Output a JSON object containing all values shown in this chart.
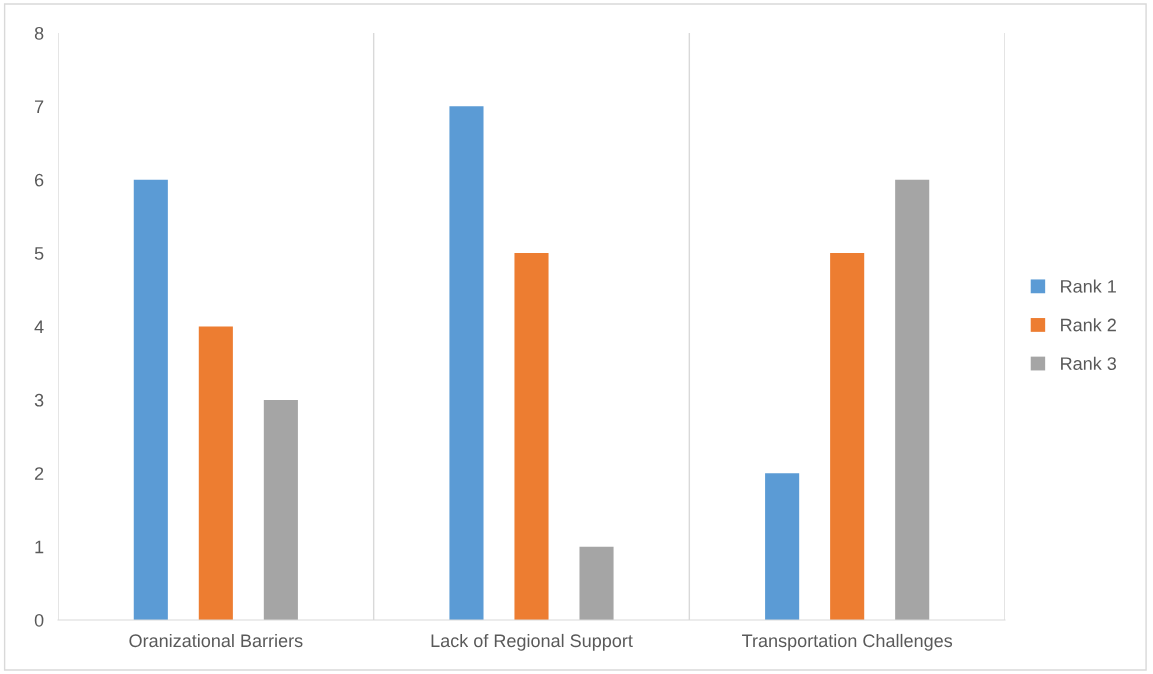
{
  "chart_data": {
    "type": "bar",
    "categories": [
      "Oranizational Barriers",
      "Lack of Regional Support",
      "Transportation Challenges"
    ],
    "series": [
      {
        "name": "Rank 1",
        "color": "#5b9bd5",
        "values": [
          6,
          7,
          2
        ]
      },
      {
        "name": "Rank 2",
        "color": "#ed7d31",
        "values": [
          4,
          5,
          5
        ]
      },
      {
        "name": "Rank 3",
        "color": "#a5a5a5",
        "values": [
          3,
          1,
          6
        ]
      }
    ],
    "ylim": [
      0,
      8
    ],
    "yticks": [
      0,
      1,
      2,
      3,
      4,
      5,
      6,
      7,
      8
    ],
    "grid": "x",
    "legend": "right"
  }
}
